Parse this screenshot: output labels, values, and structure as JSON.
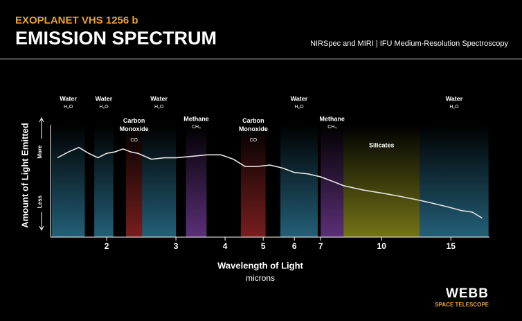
{
  "header": {
    "kicker": "EXOPLANET VHS 1256 b",
    "title": "EMISSION SPECTRUM",
    "subtitle": "NIRSpec and MIRI | IFU Medium-Resolution Spectroscopy"
  },
  "logo": {
    "name": "WEBB",
    "tagline": "SPACE TELESCOPE"
  },
  "chart_data": {
    "type": "line",
    "x_label": "Wavelength of Light",
    "x_unit": "microns",
    "y_label": "Amount of Light Emitted",
    "xlog": true,
    "xlim": [
      1.44,
      18.8
    ],
    "xticks": [
      2,
      3,
      4,
      5,
      6,
      7,
      10,
      15
    ],
    "ylim": [
      0,
      100
    ],
    "yticks": [
      {
        "value": 58,
        "label": "More"
      },
      {
        "value": 24,
        "label": "Less"
      }
    ],
    "color": "#e6e6e6",
    "x": [
      1.5,
      1.6,
      1.7,
      1.8,
      1.9,
      2.0,
      2.1,
      2.2,
      2.3,
      2.4,
      2.6,
      2.8,
      3.0,
      3.3,
      3.6,
      3.9,
      4.2,
      4.5,
      4.8,
      5.2,
      5.6,
      6.0,
      6.5,
      7.0,
      7.5,
      8.0,
      9.0,
      10,
      11,
      12,
      13,
      14,
      15,
      16,
      17,
      18
    ],
    "values": [
      54,
      58,
      61,
      57,
      54,
      57,
      58,
      60,
      58,
      57,
      53,
      54,
      54,
      55,
      56,
      56,
      53,
      48,
      48,
      49,
      47,
      44,
      43,
      41,
      38,
      35,
      32,
      30,
      28,
      26,
      24,
      22,
      20,
      18,
      17,
      13
    ],
    "bands": [
      {
        "label": "Water",
        "formula": "H₂O",
        "range": [
          1.45,
          1.76
        ],
        "color": "#2f7fa0"
      },
      {
        "label": "Water",
        "formula": "H₂O",
        "range": [
          1.86,
          2.08
        ],
        "color": "#2f7fa0"
      },
      {
        "label": "Carbon Monoxide",
        "formula": "CO",
        "range": [
          2.24,
          2.46
        ],
        "color": "#a02828"
      },
      {
        "label": "Water",
        "formula": "H₂O",
        "range": [
          2.46,
          3.0
        ],
        "color": "#2f7fa0"
      },
      {
        "label": "Methane",
        "formula": "CH₄",
        "range": [
          3.18,
          3.59
        ],
        "color": "#7a3fa0"
      },
      {
        "label": "Carbon Monoxide",
        "formula": "CO",
        "range": [
          4.39,
          5.07
        ],
        "color": "#a02828"
      },
      {
        "label": "Water",
        "formula": "H₂O",
        "range": [
          5.53,
          6.88
        ],
        "color": "#2f7fa0"
      },
      {
        "label": "Methane",
        "formula": "CH₄",
        "range": [
          7.0,
          8.0
        ],
        "color": "#7a3fa0"
      },
      {
        "label": "Silicates",
        "range": [
          8.0,
          12.5
        ],
        "color": "#9a9a1e"
      },
      {
        "label": "Water",
        "formula": "H₂O",
        "range": [
          12.5,
          18.7
        ],
        "color": "#2f7fa0"
      }
    ]
  }
}
